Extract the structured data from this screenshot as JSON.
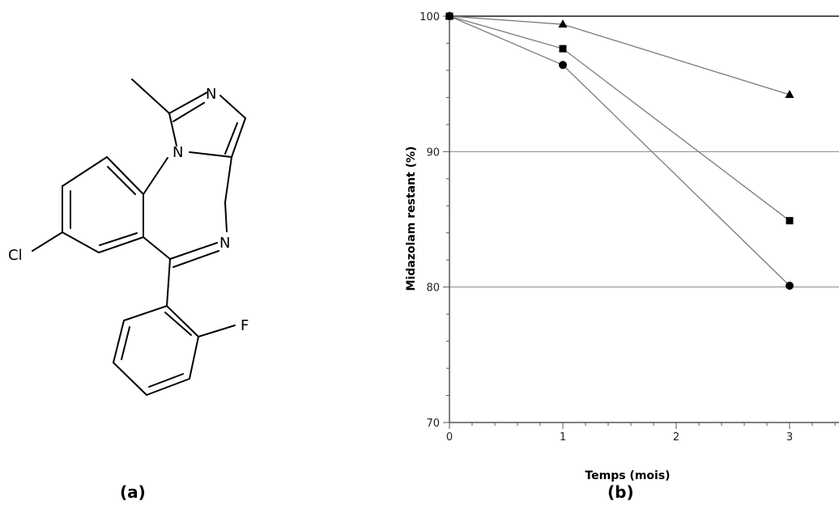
{
  "molecule": {
    "atoms": {
      "cl": "Cl",
      "f": "F",
      "n_imidazole_top": "N",
      "n_imidazole_bridge": "N",
      "n_azepine": "N"
    },
    "label": "(a)"
  },
  "chart": {
    "label": "(b)"
  },
  "chart_data": {
    "type": "line",
    "title": "",
    "xlabel": "Temps (mois)",
    "ylabel": "Midazolam restant (%)",
    "xlim": [
      0,
      3.55
    ],
    "ylim": [
      70,
      100
    ],
    "x_ticks": [
      "0",
      "1",
      "2",
      "3"
    ],
    "y_ticks": [
      "70",
      "80",
      "90",
      "100"
    ],
    "grid": "horizontal",
    "legend": "none",
    "series": [
      {
        "marker": "triangle",
        "x": [
          0,
          1,
          3
        ],
        "values": [
          100,
          99.4,
          94.2
        ]
      },
      {
        "marker": "square",
        "x": [
          0,
          1,
          3
        ],
        "values": [
          100,
          97.6,
          84.9
        ]
      },
      {
        "marker": "circle",
        "x": [
          0,
          1,
          3
        ],
        "values": [
          100,
          96.4,
          80.1
        ]
      }
    ],
    "colors": {
      "line": "#7a7a7a",
      "marker": "#000000",
      "grid": "#888888",
      "axis": "#555555"
    }
  }
}
